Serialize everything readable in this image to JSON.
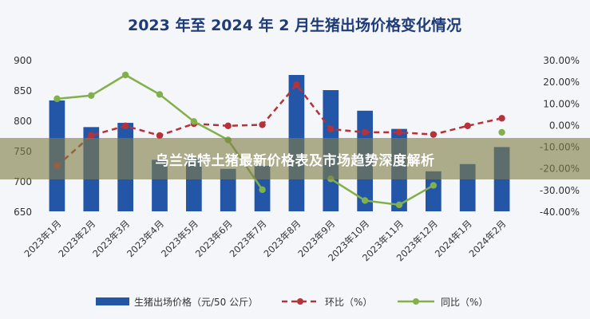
{
  "banner": {
    "text": "乌兰浩特土猪最新价格表及市场趋势深度解析"
  },
  "chart_data": {
    "type": "bar",
    "title": "2023 年至 2024 年 2 月生猪出场价格变化情况",
    "categories": [
      "2023年1月",
      "2023年2月",
      "2023年3月",
      "2023年4月",
      "2023年5月",
      "2023年6月",
      "2023年7月",
      "2023年8月",
      "2023年9月",
      "2023年10月",
      "2023年11月",
      "2023年12月",
      "2024年1月",
      "2024年2月"
    ],
    "ylim_left": [
      650,
      900
    ],
    "yticks_left": [
      "900",
      "850",
      "800",
      "750",
      "700",
      "650"
    ],
    "ylim_right": [
      -40,
      30
    ],
    "yticks_right": [
      "30.00%",
      "20.00%",
      "10.00%",
      "0.00%",
      "-10.00%",
      "-20.00%",
      "-30.00%",
      "-40.00%"
    ],
    "series": [
      {
        "name": "生猪出场价格（元/50 公斤）",
        "type": "bar",
        "axis": "left",
        "color": "#2456a8",
        "values": [
          833,
          789,
          796,
          735,
          738,
          720,
          725,
          875,
          850,
          816,
          786,
          716,
          728,
          756
        ]
      },
      {
        "name": "环比（%）",
        "type": "line",
        "axis": "right",
        "color": "#b5323a",
        "dash": true,
        "values": [
          -19,
          -5,
          -0.5,
          -5,
          0.5,
          -0.5,
          0,
          18.5,
          -2,
          -3.5,
          -3.5,
          -4.5,
          -0.5,
          3
        ]
      },
      {
        "name": "同比（%）",
        "type": "line",
        "axis": "right",
        "color": "#82b04a",
        "dash": false,
        "values": [
          12,
          13.5,
          23,
          14,
          1.5,
          -7,
          -30,
          null,
          -25,
          -35,
          -37,
          -28,
          null,
          -3.5
        ]
      }
    ],
    "grid": false,
    "legend": "bottom"
  }
}
